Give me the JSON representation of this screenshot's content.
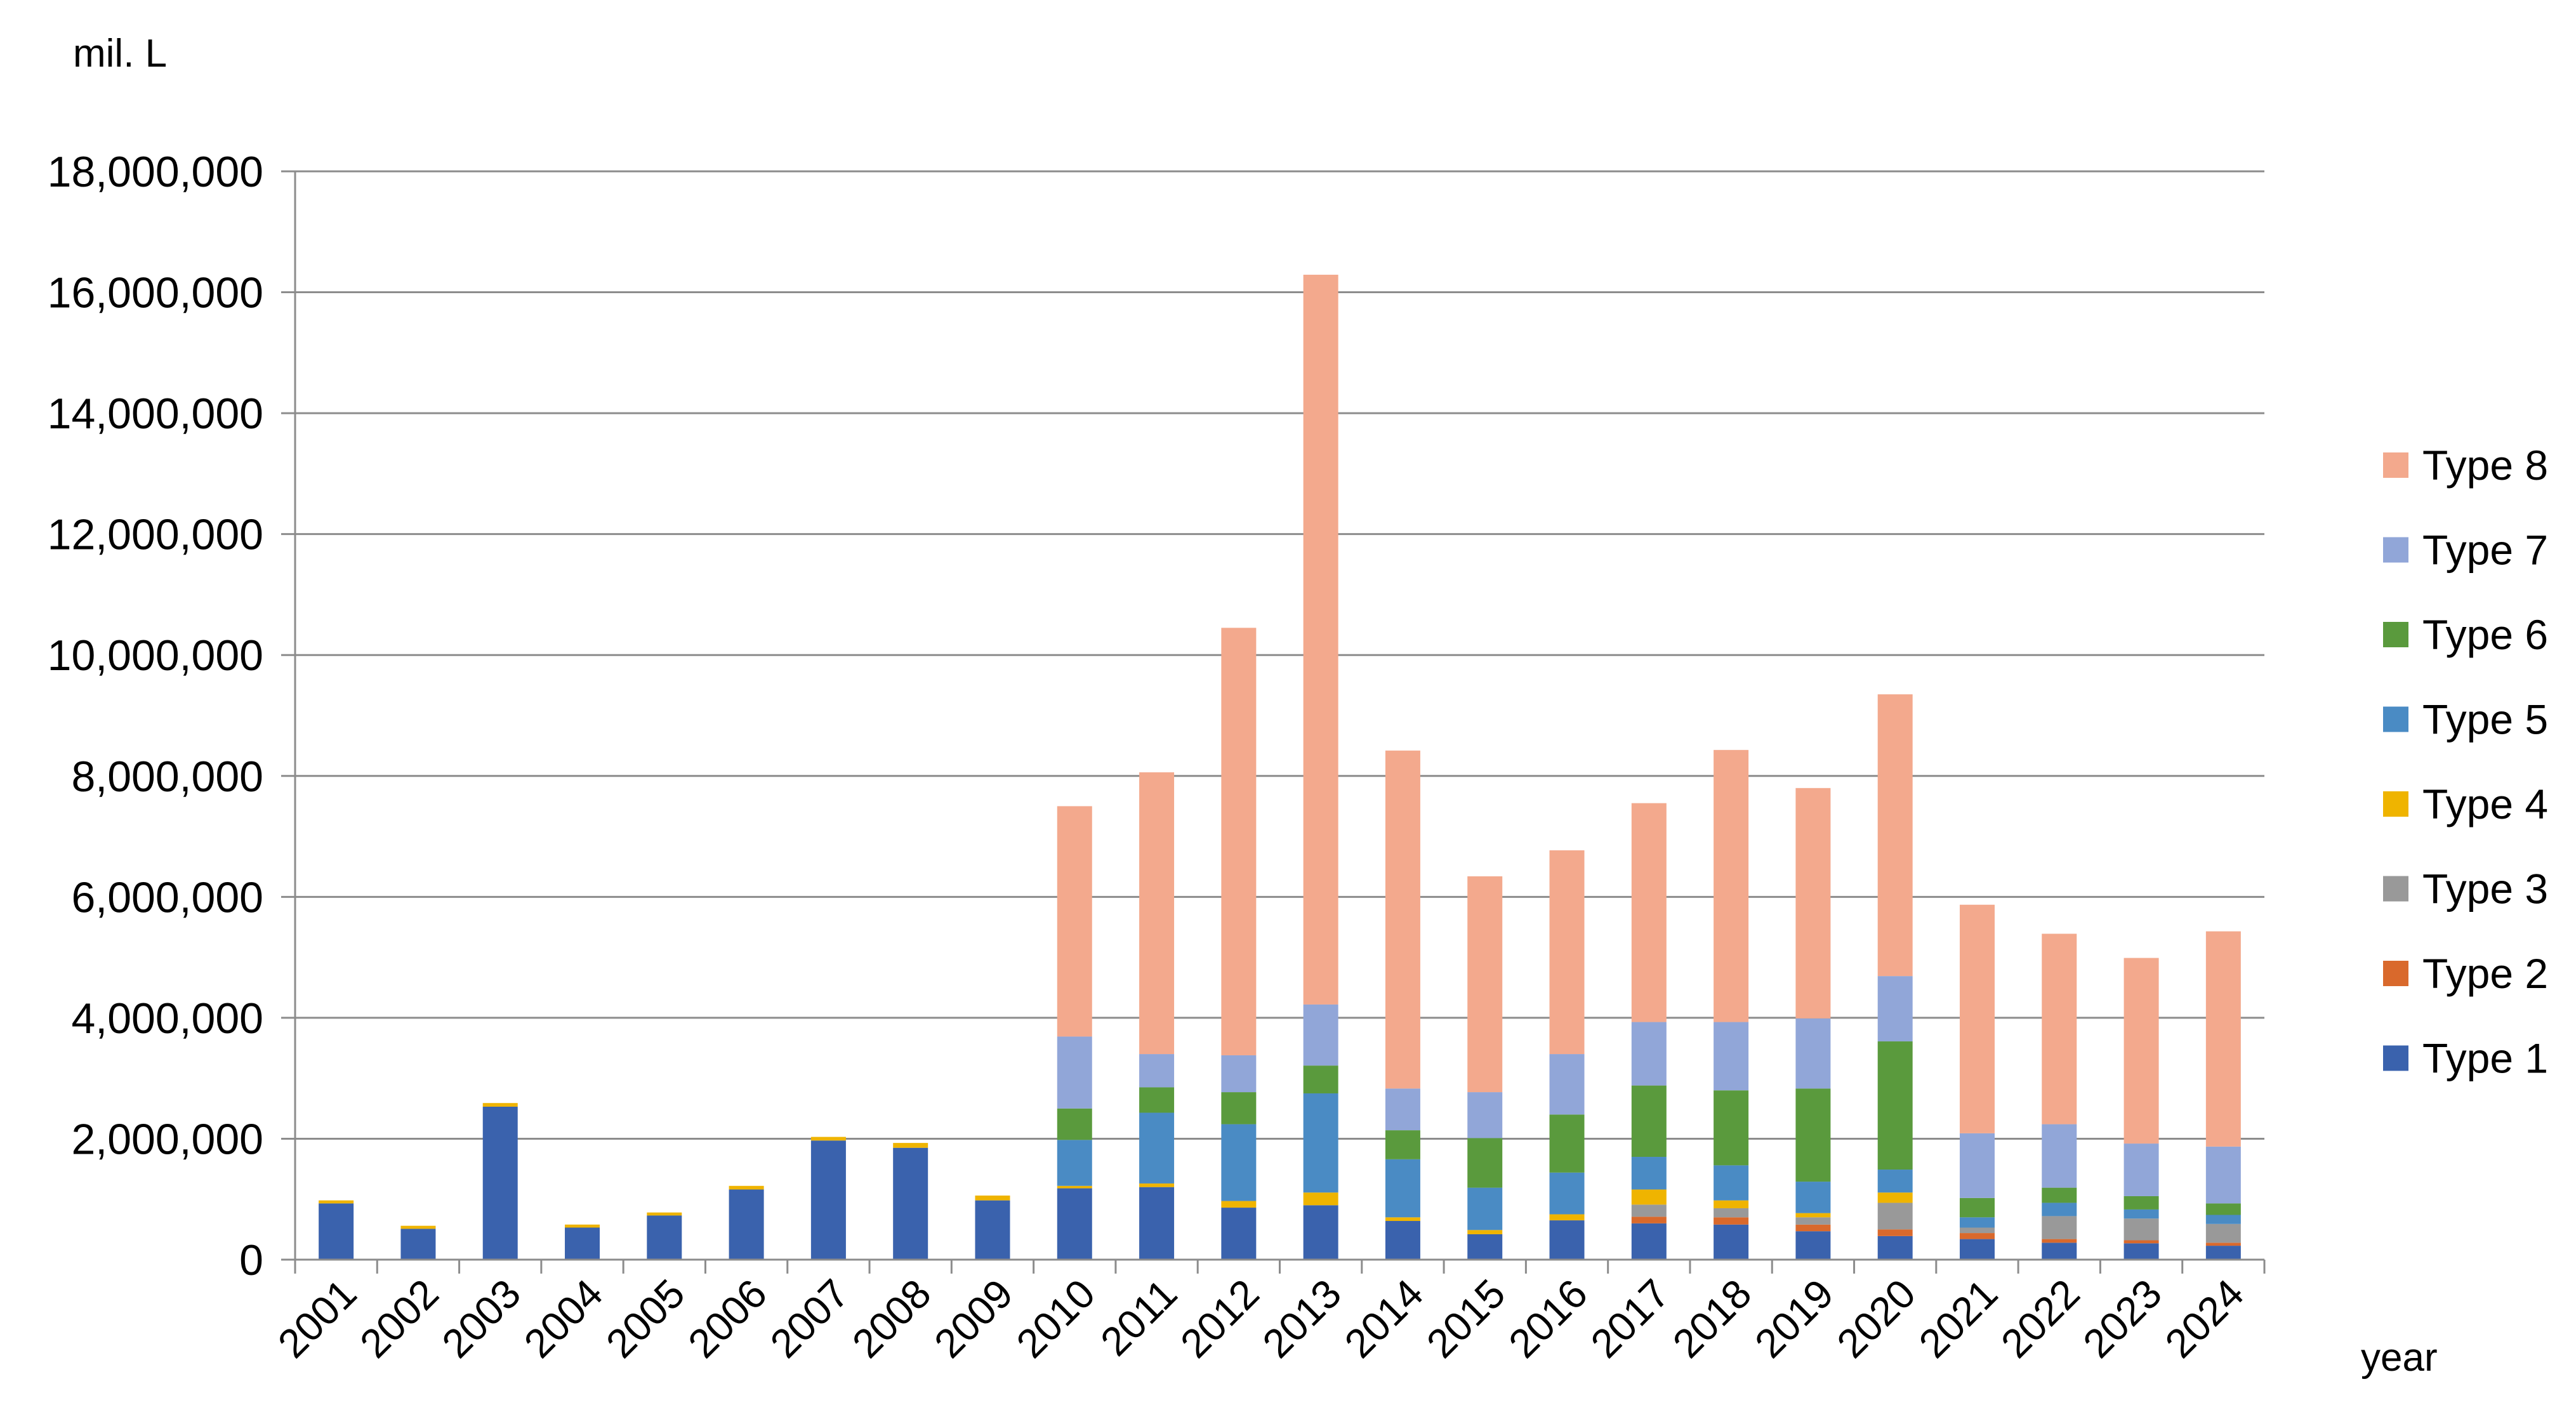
{
  "chart_data": {
    "type": "bar",
    "stacked": true,
    "xlabel": "year",
    "ylabel": "mil. L",
    "ylim": [
      0,
      18000000
    ],
    "yticks": [
      0,
      2000000,
      4000000,
      6000000,
      8000000,
      10000000,
      12000000,
      14000000,
      16000000,
      18000000
    ],
    "ytick_labels": [
      "0",
      "2,000,000",
      "4,000,000",
      "6,000,000",
      "8,000,000",
      "10,000,000",
      "12,000,000",
      "14,000,000",
      "16,000,000",
      "18,000,000"
    ],
    "grid": "horizontal",
    "legend_position": "right",
    "categories": [
      "2001",
      "2002",
      "2003",
      "2004",
      "2005",
      "2006",
      "2007",
      "2008",
      "2009",
      "2010",
      "2011",
      "2012",
      "2013",
      "2014",
      "2015",
      "2016",
      "2017",
      "2018",
      "2019",
      "2020",
      "2021",
      "2022",
      "2023",
      "2024"
    ],
    "series": [
      {
        "name": "Type 1",
        "color": "#3a62ad",
        "values": [
          930000,
          510000,
          2530000,
          530000,
          730000,
          1160000,
          1970000,
          1850000,
          980000,
          1180000,
          1200000,
          860000,
          900000,
          640000,
          420000,
          650000,
          600000,
          580000,
          470000,
          390000,
          340000,
          280000,
          270000,
          230000
        ]
      },
      {
        "name": "Type 2",
        "color": "#d9692c",
        "values": [
          0,
          0,
          0,
          0,
          0,
          0,
          0,
          0,
          0,
          0,
          0,
          0,
          0,
          0,
          0,
          0,
          110000,
          120000,
          110000,
          110000,
          100000,
          60000,
          50000,
          50000
        ]
      },
      {
        "name": "Type 3",
        "color": "#999999",
        "values": [
          0,
          0,
          0,
          0,
          0,
          0,
          0,
          0,
          0,
          0,
          0,
          0,
          0,
          0,
          0,
          0,
          200000,
          150000,
          120000,
          440000,
          90000,
          380000,
          360000,
          310000
        ]
      },
      {
        "name": "Type 4",
        "color": "#efb400",
        "values": [
          50000,
          50000,
          60000,
          50000,
          50000,
          60000,
          60000,
          80000,
          80000,
          40000,
          60000,
          110000,
          210000,
          60000,
          70000,
          100000,
          250000,
          130000,
          70000,
          170000,
          0,
          0,
          0,
          0
        ]
      },
      {
        "name": "Type 5",
        "color": "#4a8bc4",
        "values": [
          0,
          0,
          0,
          0,
          0,
          0,
          0,
          0,
          0,
          760000,
          1170000,
          1270000,
          1640000,
          960000,
          700000,
          690000,
          540000,
          580000,
          520000,
          380000,
          170000,
          220000,
          150000,
          150000
        ]
      },
      {
        "name": "Type 6",
        "color": "#5a9a3d",
        "values": [
          0,
          0,
          0,
          0,
          0,
          0,
          0,
          0,
          0,
          520000,
          420000,
          530000,
          460000,
          480000,
          820000,
          960000,
          1180000,
          1240000,
          1540000,
          2120000,
          320000,
          250000,
          220000,
          190000
        ]
      },
      {
        "name": "Type 7",
        "color": "#91a6d8",
        "values": [
          0,
          0,
          0,
          0,
          0,
          0,
          0,
          0,
          0,
          1190000,
          550000,
          610000,
          1010000,
          690000,
          760000,
          1000000,
          1050000,
          1130000,
          1160000,
          1080000,
          1070000,
          1050000,
          870000,
          940000
        ]
      },
      {
        "name": "Type 8",
        "color": "#f3a98d",
        "values": [
          0,
          0,
          0,
          0,
          0,
          0,
          0,
          0,
          0,
          3810000,
          4660000,
          7070000,
          12070000,
          5590000,
          3570000,
          3370000,
          3620000,
          4500000,
          3810000,
          4660000,
          3780000,
          3150000,
          3070000,
          3560000
        ]
      }
    ]
  }
}
